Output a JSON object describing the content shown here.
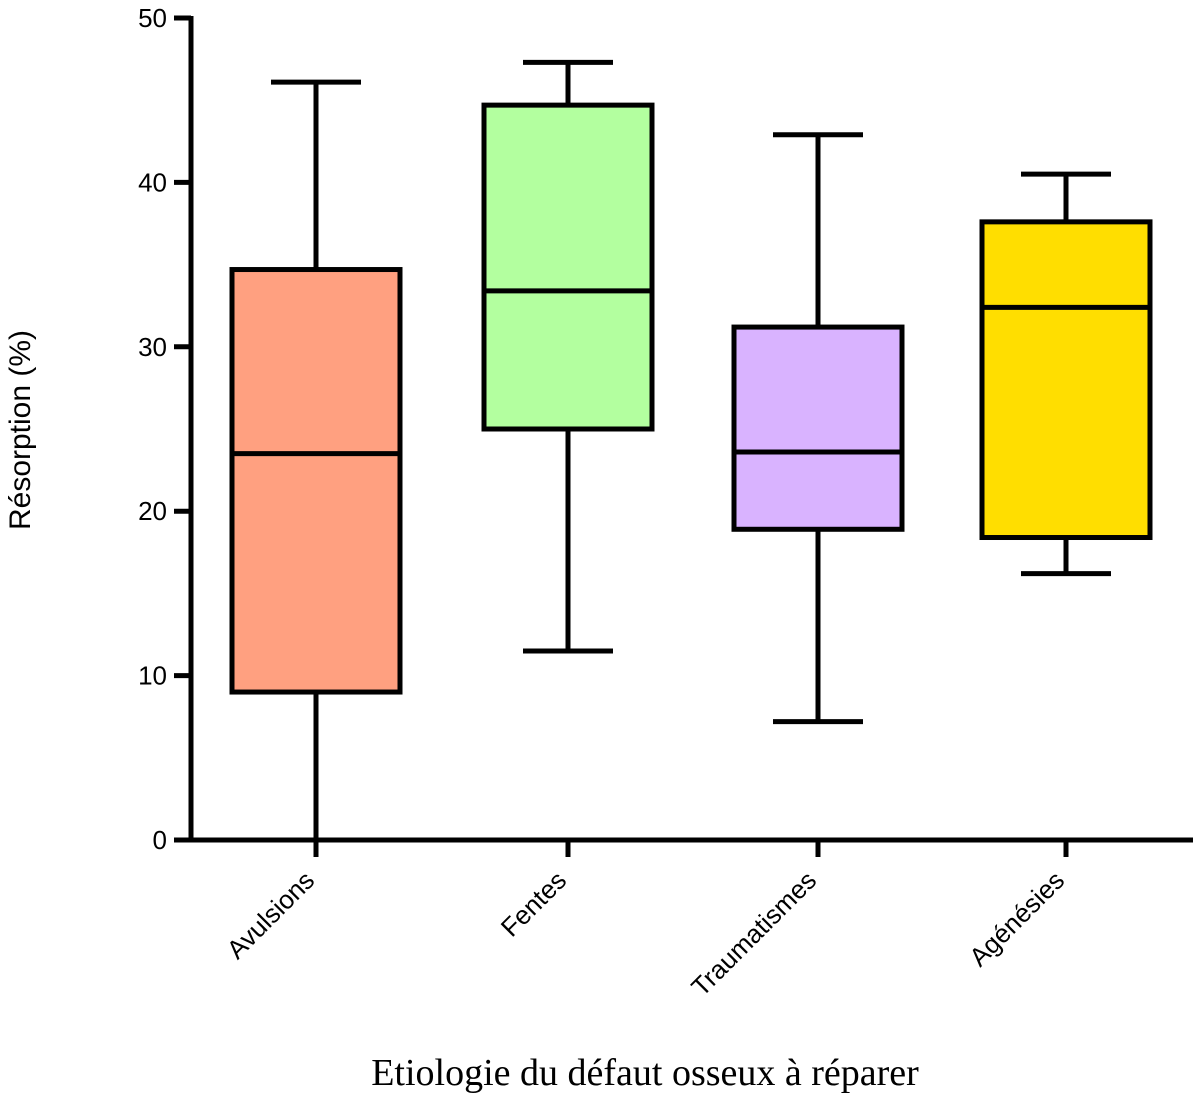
{
  "chart_data": {
    "type": "box",
    "title": "",
    "xlabel": "Etiologie du défaut osseux à réparer",
    "ylabel": "Résorption (%)",
    "ylim": [
      0,
      50
    ],
    "yticks": [
      0,
      10,
      20,
      30,
      40,
      50
    ],
    "grid": false,
    "legend": "none",
    "categories": [
      "Avulsions",
      "Fentes",
      "Traumatismes",
      "Agénésies"
    ],
    "series": [
      {
        "category": "Avulsions",
        "min": 0,
        "q1": 9,
        "median": 23.5,
        "q3": 34.7,
        "max": 46.1,
        "color": "#ffa080"
      },
      {
        "category": "Fentes",
        "min": 11.5,
        "q1": 25,
        "median": 33.4,
        "q3": 44.7,
        "max": 47.3,
        "color": "#b3ff9f"
      },
      {
        "category": "Traumatismes",
        "min": 7.2,
        "q1": 18.9,
        "median": 23.6,
        "q3": 31.2,
        "max": 42.9,
        "color": "#d9b3ff"
      },
      {
        "category": "Agénésies",
        "min": 16.2,
        "q1": 18.4,
        "median": 32.4,
        "q3": 37.6,
        "max": 40.5,
        "color": "#ffde00"
      }
    ]
  }
}
